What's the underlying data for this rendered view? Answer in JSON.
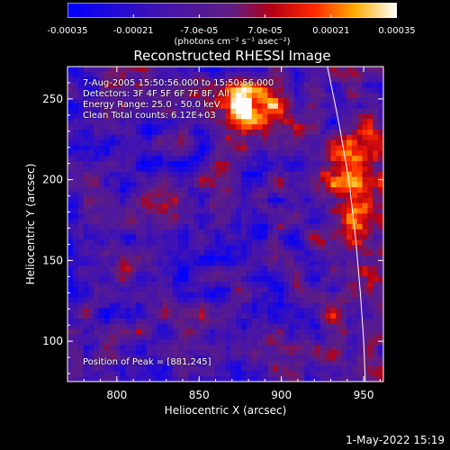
{
  "colorbar": {
    "tick_labels": [
      "-0.00035",
      "-0.00021",
      "-7.0e-05",
      "7.0e-05",
      "0.00021",
      "0.00035"
    ],
    "tick_values": [
      -0.00035,
      -0.00021,
      -7e-05,
      7e-05,
      0.00021,
      0.00035
    ],
    "units_label": "(photons cm⁻² s⁻¹ asec⁻²)",
    "range": [
      -0.00035,
      0.00035
    ]
  },
  "chart_data": {
    "type": "heatmap",
    "title": "Reconstructed RHESSI Image",
    "xlabel": "Heliocentric X (arcsec)",
    "ylabel": "Heliocentric Y (arcsec)",
    "xlim": [
      770,
      962
    ],
    "ylim": [
      75,
      270
    ],
    "x_ticks": [
      800,
      850,
      900,
      950
    ],
    "y_ticks": [
      100,
      150,
      200,
      250
    ],
    "peak": [
      881,
      245
    ],
    "limb_curve": [
      [
        928,
        270
      ],
      [
        935,
        235
      ],
      [
        941,
        200
      ],
      [
        945,
        165
      ],
      [
        948,
        130
      ],
      [
        950,
        100
      ],
      [
        951,
        75
      ]
    ]
  },
  "annotations": {
    "time_range": "7-Aug-2005 15:50:56.000 to 15:50:56.000",
    "detectors": "Detectors: 3F 4F 5F 6F 7F 8F, All",
    "energy": "Energy Range: 25.0 - 50.0 keV",
    "clean": "Clean     Total counts: 6.12E+03",
    "peak_label": "Position of Peak = [881,245]"
  },
  "footer": {
    "date": "1-May-2022 15:19"
  },
  "colors": {
    "low": "#0000ff",
    "mid": "#5a1a9a",
    "high": "#ffffff",
    "accent": "#ff3000"
  }
}
